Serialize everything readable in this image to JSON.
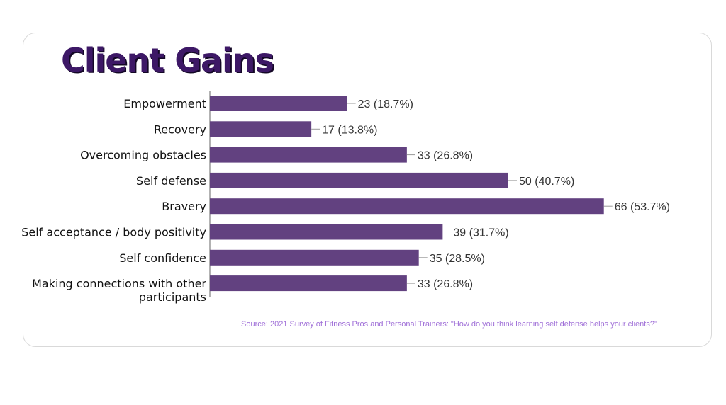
{
  "title": "Client Gains",
  "source": "Source: 2021 Survey  of Fitness Pros and Personal Trainers: \"How do you think learning self defense helps your clients?\"",
  "colors": {
    "bar": "#624180",
    "title": "#3d1866",
    "source": "#a070d8"
  },
  "chart_data": {
    "type": "bar",
    "orientation": "horizontal",
    "categories": [
      "Empowerment",
      "Recovery",
      "Overcoming obstacles",
      "Self defense",
      "Bravery",
      "Self acceptance / body positivity",
      "Self confidence",
      "Making connections with other participants"
    ],
    "values": [
      23,
      17,
      33,
      50,
      66,
      39,
      35,
      33
    ],
    "data_labels": [
      "23 (18.7%)",
      "17 (13.8%)",
      "33 (26.8%)",
      "50 (40.7%)",
      "66 (53.7%)",
      "39 (31.7%)",
      "35 (28.5%)",
      "33 (26.8%)"
    ],
    "xlim": [
      0,
      80
    ],
    "grid": false
  }
}
